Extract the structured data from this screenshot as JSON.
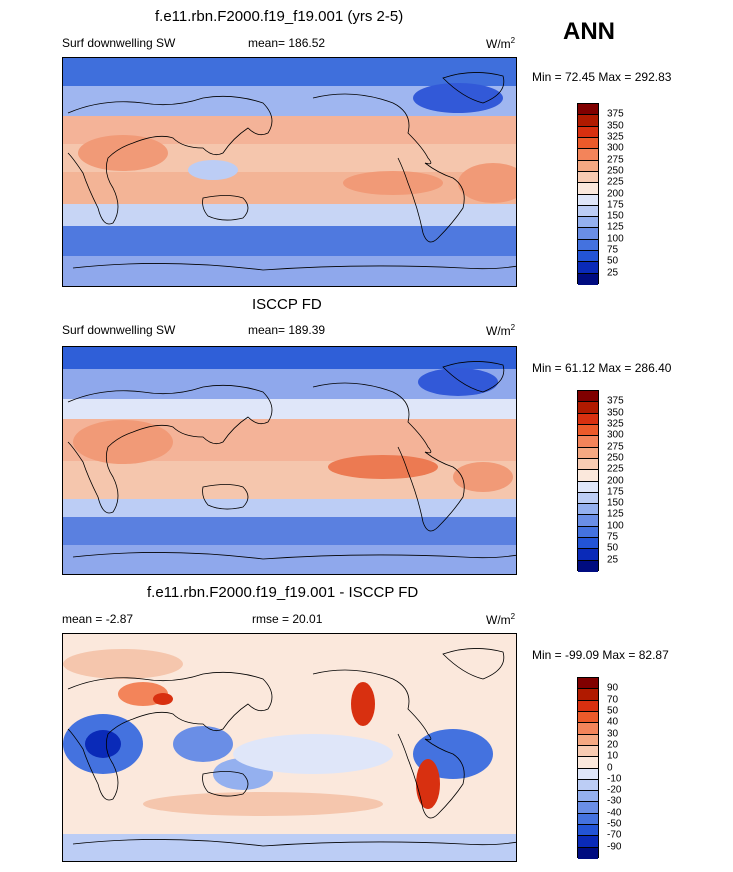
{
  "season": "ANN",
  "panels": [
    {
      "title": "f.e11.rbn.F2000.f19_f19.001 (yrs 2-5)",
      "left_label": "Surf downwelling SW",
      "stat_label": "mean= 186.52",
      "units": "W/m",
      "units_sup": "2",
      "minmax": "Min =  72.45 Max = 292.83",
      "colorbar": {
        "labels": [
          "375",
          "350",
          "325",
          "300",
          "275",
          "250",
          "225",
          "200",
          "175",
          "150",
          "125",
          "100",
          "75",
          "50",
          "25"
        ],
        "colors": [
          "#800000",
          "#b01a00",
          "#d83010",
          "#ec5a2a",
          "#f3845a",
          "#f5a882",
          "#f8cbb2",
          "#fbe8dc",
          "#dfe6f9",
          "#bccdf5",
          "#94b0ef",
          "#6a8ee6",
          "#4472df",
          "#2354d6",
          "#0a2ab8",
          "#000c80"
        ]
      }
    },
    {
      "title": "ISCCP FD",
      "left_label": "Surf downwelling SW",
      "stat_label": "mean= 189.39",
      "units": "W/m",
      "units_sup": "2",
      "minmax": "Min =  61.12 Max = 286.40",
      "colorbar": {
        "labels": [
          "375",
          "350",
          "325",
          "300",
          "275",
          "250",
          "225",
          "200",
          "175",
          "150",
          "125",
          "100",
          "75",
          "50",
          "25"
        ],
        "colors": [
          "#800000",
          "#b01a00",
          "#d83010",
          "#ec5a2a",
          "#f3845a",
          "#f5a882",
          "#f8cbb2",
          "#fbe8dc",
          "#dfe6f9",
          "#bccdf5",
          "#94b0ef",
          "#6a8ee6",
          "#4472df",
          "#2354d6",
          "#0a2ab8",
          "#000c80"
        ]
      }
    },
    {
      "title": "f.e11.rbn.F2000.f19_f19.001 - ISCCP FD",
      "left_label": "mean =  -2.87",
      "stat_label": "rmse =  20.01",
      "units": "W/m",
      "units_sup": "2",
      "minmax": "Min = -99.09 Max =  82.87",
      "colorbar": {
        "labels": [
          "90",
          "70",
          "50",
          "40",
          "30",
          "20",
          "10",
          "0",
          "-10",
          "-20",
          "-30",
          "-40",
          "-50",
          "-70",
          "-90"
        ],
        "colors": [
          "#800000",
          "#b01a00",
          "#d83010",
          "#ec5a2a",
          "#f3845a",
          "#f5a882",
          "#f8cbb2",
          "#fbe8dc",
          "#dfe6f9",
          "#bccdf5",
          "#94b0ef",
          "#6a8ee6",
          "#4472df",
          "#2354d6",
          "#0a2ab8",
          "#000c80"
        ]
      }
    }
  ]
}
